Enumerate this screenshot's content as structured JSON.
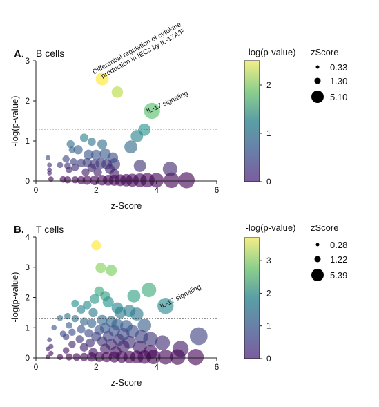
{
  "colorscale": [
    "#440154",
    "#3b528b",
    "#21918c",
    "#5ec962",
    "#fde725"
  ],
  "chart_data": [
    {
      "type": "scatter",
      "panel_label": "A.",
      "title": "B cells",
      "xlabel": "z-Score",
      "ylabel": "-log(p-value)",
      "xlim": [
        0,
        6
      ],
      "ylim": [
        0,
        3
      ],
      "xticks": [
        0,
        2,
        4,
        6
      ],
      "yticks": [
        0,
        1,
        2,
        3
      ],
      "threshold": 1.3,
      "colorbar": {
        "label": "-log(p-value)",
        "min": 0,
        "max": 2.5,
        "ticks": [
          0,
          1,
          2
        ]
      },
      "size_legend": {
        "label": "zScore",
        "entries": [
          0.33,
          1.3,
          5.1
        ],
        "entry_labels": [
          "0.33",
          "1.30",
          "5.10"
        ]
      },
      "annotations": [
        {
          "text": "Differential regulation of cytokine production in IECs by IL-17A/F",
          "x": 2.2,
          "y": 2.55,
          "angle": -29
        },
        {
          "text": "IL-17 signaling",
          "x": 3.85,
          "y": 1.75,
          "angle": -25
        }
      ],
      "points": [
        {
          "x": 2.2,
          "y": 2.55,
          "z": 3.0
        },
        {
          "x": 2.7,
          "y": 2.22,
          "z": 2.5
        },
        {
          "x": 3.85,
          "y": 1.75,
          "z": 4.0
        },
        {
          "x": 3.6,
          "y": 1.28,
          "z": 2.8
        },
        {
          "x": 3.35,
          "y": 1.12,
          "z": 2.8
        },
        {
          "x": 3.15,
          "y": 0.85,
          "z": 3.0
        },
        {
          "x": 1.6,
          "y": 1.08,
          "z": 1.5
        },
        {
          "x": 1.15,
          "y": 0.92,
          "z": 1.4
        },
        {
          "x": 1.85,
          "y": 0.98,
          "z": 1.5
        },
        {
          "x": 2.2,
          "y": 0.92,
          "z": 2.0
        },
        {
          "x": 1.4,
          "y": 0.78,
          "z": 1.8
        },
        {
          "x": 1.2,
          "y": 0.78,
          "z": 1.0
        },
        {
          "x": 1.75,
          "y": 0.66,
          "z": 2.0
        },
        {
          "x": 2.0,
          "y": 0.65,
          "z": 2.2
        },
        {
          "x": 2.3,
          "y": 0.68,
          "z": 2.4
        },
        {
          "x": 2.55,
          "y": 0.58,
          "z": 2.3
        },
        {
          "x": 0.4,
          "y": 0.58,
          "z": 0.5
        },
        {
          "x": 1.0,
          "y": 0.55,
          "z": 1.2
        },
        {
          "x": 1.25,
          "y": 0.48,
          "z": 1.2
        },
        {
          "x": 1.5,
          "y": 0.45,
          "z": 1.6
        },
        {
          "x": 1.7,
          "y": 0.46,
          "z": 1.8
        },
        {
          "x": 1.95,
          "y": 0.42,
          "z": 2.0
        },
        {
          "x": 2.15,
          "y": 0.44,
          "z": 2.2
        },
        {
          "x": 2.35,
          "y": 0.42,
          "z": 2.2
        },
        {
          "x": 2.6,
          "y": 0.42,
          "z": 2.6
        },
        {
          "x": 0.8,
          "y": 0.4,
          "z": 0.8
        },
        {
          "x": 1.05,
          "y": 0.38,
          "z": 1.0
        },
        {
          "x": 3.45,
          "y": 0.38,
          "z": 2.8
        },
        {
          "x": 0.45,
          "y": 0.4,
          "z": 0.4
        },
        {
          "x": 1.3,
          "y": 0.34,
          "z": 1.3
        },
        {
          "x": 1.85,
          "y": 0.33,
          "z": 1.6
        },
        {
          "x": 2.45,
          "y": 0.3,
          "z": 2.0
        },
        {
          "x": 4.45,
          "y": 0.3,
          "z": 3.5
        },
        {
          "x": 0.45,
          "y": 0.28,
          "z": 0.4
        },
        {
          "x": 1.1,
          "y": 0.28,
          "z": 1.0
        },
        {
          "x": 1.65,
          "y": 0.22,
          "z": 1.4
        },
        {
          "x": 2.05,
          "y": 0.22,
          "z": 1.6
        },
        {
          "x": 2.6,
          "y": 0.18,
          "z": 2.0
        },
        {
          "x": 0.45,
          "y": 0.2,
          "z": 0.4
        },
        {
          "x": 0.5,
          "y": 0.05,
          "z": 0.6
        },
        {
          "x": 0.9,
          "y": 0.04,
          "z": 1.0
        },
        {
          "x": 1.05,
          "y": 0.03,
          "z": 1.2
        },
        {
          "x": 1.3,
          "y": 0.03,
          "z": 1.2
        },
        {
          "x": 1.5,
          "y": 0.02,
          "z": 1.5
        },
        {
          "x": 1.7,
          "y": 0.02,
          "z": 1.8
        },
        {
          "x": 1.95,
          "y": 0.02,
          "z": 2.0
        },
        {
          "x": 2.2,
          "y": 0.02,
          "z": 2.2
        },
        {
          "x": 2.4,
          "y": 0.02,
          "z": 2.3
        },
        {
          "x": 2.6,
          "y": 0.02,
          "z": 2.4
        },
        {
          "x": 2.8,
          "y": 0.02,
          "z": 2.6
        },
        {
          "x": 3.0,
          "y": 0.02,
          "z": 2.8
        },
        {
          "x": 3.2,
          "y": 0.02,
          "z": 3.0
        },
        {
          "x": 3.45,
          "y": 0.02,
          "z": 3.2
        },
        {
          "x": 3.7,
          "y": 0.02,
          "z": 3.4
        },
        {
          "x": 4.0,
          "y": 0.02,
          "z": 3.5
        },
        {
          "x": 4.5,
          "y": 0.02,
          "z": 3.8
        },
        {
          "x": 5.0,
          "y": 0.02,
          "z": 4.0
        }
      ]
    },
    {
      "type": "scatter",
      "panel_label": "B.",
      "title": "T cells",
      "xlabel": "z-Score",
      "ylabel": "-log(p-value)",
      "xlim": [
        0,
        6
      ],
      "ylim": [
        0,
        4
      ],
      "xticks": [
        0,
        2,
        4,
        6
      ],
      "yticks": [
        0,
        1,
        2,
        3,
        4
      ],
      "threshold": 1.3,
      "colorbar": {
        "label": "-log(p-value)",
        "min": 0,
        "max": 3.7,
        "ticks": [
          0,
          1,
          2,
          3
        ]
      },
      "size_legend": {
        "label": "zScore",
        "entries": [
          0.28,
          1.22,
          5.39
        ],
        "entry_labels": [
          "0.28",
          "1.22",
          "5.39"
        ]
      },
      "annotations": [
        {
          "text": "IL-17 signaling",
          "x": 4.3,
          "y": 1.72,
          "angle": -27
        }
      ],
      "points": [
        {
          "x": 2.0,
          "y": 3.72,
          "z": 2.0
        },
        {
          "x": 2.15,
          "y": 2.98,
          "z": 2.2
        },
        {
          "x": 2.5,
          "y": 2.9,
          "z": 2.4
        },
        {
          "x": 3.75,
          "y": 2.25,
          "z": 3.5
        },
        {
          "x": 3.25,
          "y": 2.05,
          "z": 3.0
        },
        {
          "x": 4.3,
          "y": 1.72,
          "z": 4.0
        },
        {
          "x": 2.1,
          "y": 2.2,
          "z": 2.0
        },
        {
          "x": 2.3,
          "y": 2.05,
          "z": 2.0
        },
        {
          "x": 1.95,
          "y": 1.95,
          "z": 2.0
        },
        {
          "x": 1.3,
          "y": 1.8,
          "z": 1.3
        },
        {
          "x": 2.4,
          "y": 1.85,
          "z": 2.4
        },
        {
          "x": 1.7,
          "y": 1.75,
          "z": 1.6
        },
        {
          "x": 2.7,
          "y": 1.65,
          "z": 2.5
        },
        {
          "x": 1.5,
          "y": 1.6,
          "z": 1.5
        },
        {
          "x": 2.8,
          "y": 1.5,
          "z": 2.6
        },
        {
          "x": 3.1,
          "y": 1.55,
          "z": 2.8
        },
        {
          "x": 3.35,
          "y": 1.45,
          "z": 3.0
        },
        {
          "x": 1.9,
          "y": 1.5,
          "z": 1.8
        },
        {
          "x": 0.8,
          "y": 1.32,
          "z": 0.8
        },
        {
          "x": 1.05,
          "y": 1.38,
          "z": 1.0
        },
        {
          "x": 1.3,
          "y": 1.3,
          "z": 1.2
        },
        {
          "x": 2.2,
          "y": 1.25,
          "z": 2.2
        },
        {
          "x": 2.5,
          "y": 1.2,
          "z": 2.4
        },
        {
          "x": 1.6,
          "y": 1.2,
          "z": 1.5
        },
        {
          "x": 1.85,
          "y": 1.15,
          "z": 1.8
        },
        {
          "x": 2.7,
          "y": 1.1,
          "z": 2.6
        },
        {
          "x": 3.0,
          "y": 1.05,
          "z": 2.8
        },
        {
          "x": 3.6,
          "y": 1.08,
          "z": 3.2
        },
        {
          "x": 1.1,
          "y": 1.08,
          "z": 1.0
        },
        {
          "x": 0.6,
          "y": 1.0,
          "z": 0.6
        },
        {
          "x": 2.3,
          "y": 0.98,
          "z": 2.2
        },
        {
          "x": 1.5,
          "y": 0.95,
          "z": 1.5
        },
        {
          "x": 2.1,
          "y": 0.92,
          "z": 2.0
        },
        {
          "x": 2.6,
          "y": 0.9,
          "z": 2.5
        },
        {
          "x": 3.2,
          "y": 0.88,
          "z": 3.0
        },
        {
          "x": 1.2,
          "y": 0.85,
          "z": 1.2
        },
        {
          "x": 1.75,
          "y": 0.82,
          "z": 1.6
        },
        {
          "x": 0.9,
          "y": 0.8,
          "z": 0.9
        },
        {
          "x": 2.9,
          "y": 0.78,
          "z": 2.8
        },
        {
          "x": 2.4,
          "y": 0.72,
          "z": 2.3
        },
        {
          "x": 3.5,
          "y": 0.7,
          "z": 3.2
        },
        {
          "x": 1.0,
          "y": 0.7,
          "z": 1.0
        },
        {
          "x": 2.0,
          "y": 0.7,
          "z": 2.0
        },
        {
          "x": 5.4,
          "y": 0.72,
          "z": 4.5
        },
        {
          "x": 3.8,
          "y": 0.62,
          "z": 3.5
        },
        {
          "x": 1.45,
          "y": 0.62,
          "z": 1.4
        },
        {
          "x": 2.75,
          "y": 0.6,
          "z": 2.6
        },
        {
          "x": 0.45,
          "y": 0.6,
          "z": 0.4
        },
        {
          "x": 2.2,
          "y": 0.55,
          "z": 2.1
        },
        {
          "x": 3.1,
          "y": 0.52,
          "z": 3.0
        },
        {
          "x": 1.8,
          "y": 0.5,
          "z": 1.7
        },
        {
          "x": 4.2,
          "y": 0.5,
          "z": 3.6
        },
        {
          "x": 2.5,
          "y": 0.45,
          "z": 2.4
        },
        {
          "x": 1.2,
          "y": 0.45,
          "z": 1.2
        },
        {
          "x": 0.5,
          "y": 0.38,
          "z": 0.5
        },
        {
          "x": 2.9,
          "y": 0.38,
          "z": 2.8
        },
        {
          "x": 3.45,
          "y": 0.35,
          "z": 3.2
        },
        {
          "x": 1.6,
          "y": 0.35,
          "z": 1.6
        },
        {
          "x": 4.8,
          "y": 0.3,
          "z": 4.0
        },
        {
          "x": 2.3,
          "y": 0.3,
          "z": 2.2
        },
        {
          "x": 0.4,
          "y": 0.3,
          "z": 0.4
        },
        {
          "x": 1.0,
          "y": 0.25,
          "z": 1.0
        },
        {
          "x": 2.65,
          "y": 0.2,
          "z": 2.5
        },
        {
          "x": 3.8,
          "y": 0.2,
          "z": 3.4
        },
        {
          "x": 1.9,
          "y": 0.18,
          "z": 1.8
        },
        {
          "x": 0.5,
          "y": 0.15,
          "z": 0.5
        },
        {
          "x": 0.4,
          "y": 0.03,
          "z": 0.4
        },
        {
          "x": 0.8,
          "y": 0.03,
          "z": 0.8
        },
        {
          "x": 1.1,
          "y": 0.03,
          "z": 1.1
        },
        {
          "x": 1.35,
          "y": 0.03,
          "z": 1.3
        },
        {
          "x": 1.6,
          "y": 0.03,
          "z": 1.5
        },
        {
          "x": 1.85,
          "y": 0.03,
          "z": 1.8
        },
        {
          "x": 2.1,
          "y": 0.03,
          "z": 2.0
        },
        {
          "x": 2.35,
          "y": 0.03,
          "z": 2.2
        },
        {
          "x": 2.6,
          "y": 0.03,
          "z": 2.4
        },
        {
          "x": 2.85,
          "y": 0.03,
          "z": 2.6
        },
        {
          "x": 3.1,
          "y": 0.03,
          "z": 2.8
        },
        {
          "x": 3.35,
          "y": 0.03,
          "z": 3.0
        },
        {
          "x": 3.6,
          "y": 0.03,
          "z": 3.2
        },
        {
          "x": 3.9,
          "y": 0.03,
          "z": 3.4
        },
        {
          "x": 4.3,
          "y": 0.03,
          "z": 3.6
        },
        {
          "x": 4.7,
          "y": 0.03,
          "z": 3.8
        },
        {
          "x": 5.3,
          "y": 0.03,
          "z": 4.0
        }
      ]
    }
  ]
}
